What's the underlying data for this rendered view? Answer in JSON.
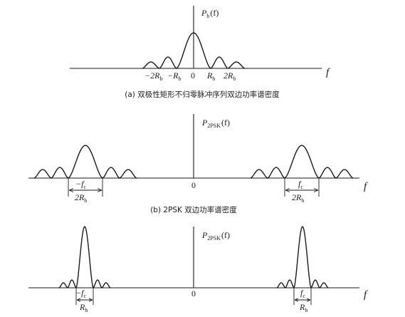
{
  "panels": {
    "a": {
      "ylabel": "P",
      "ylabel_sub": "b",
      "ylabel_arg": "(f)",
      "xlabel": "f",
      "ticks": [
        "−2R",
        "−R",
        "0",
        "R",
        "2R"
      ],
      "tick_sub": "b",
      "caption": "(a) 双极性矩形不归零脉冲序列双边功率谱密度"
    },
    "b": {
      "ylabel": "P",
      "ylabel_sub": "2PSK",
      "ylabel_arg": "(f)",
      "xlabel": "f",
      "origin": "0",
      "neg_center": "−f",
      "pos_center": "f",
      "center_sub": "c",
      "width_label": "2R",
      "width_sub": "b",
      "caption": "(b) 2PSK 双边功率谱密度"
    },
    "c": {
      "ylabel": "P",
      "ylabel_sub": "2PSK",
      "ylabel_arg": "(f)",
      "xlabel": "f",
      "origin": "0",
      "neg_center": "−f",
      "pos_center": "f",
      "center_sub": "c",
      "width_label": "R",
      "width_sub": "b"
    }
  }
}
